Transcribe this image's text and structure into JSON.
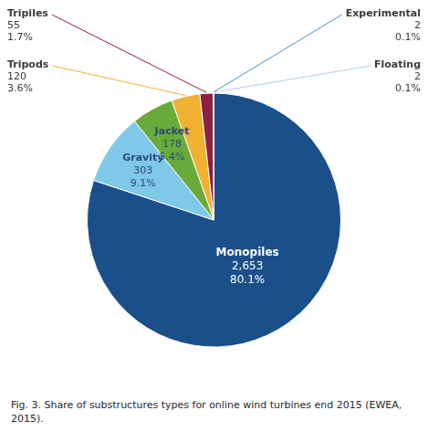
{
  "chart_data": {
    "type": "pie",
    "categories": [
      "Monopiles",
      "Gravity",
      "Jacket",
      "Tripods",
      "Tripiles",
      "Experimental",
      "Floating"
    ],
    "values": [
      2653,
      303,
      178,
      120,
      55,
      2,
      2
    ],
    "value_labels": [
      "2,653",
      "303",
      "178",
      "120",
      "55",
      "2",
      "2"
    ],
    "percents": [
      80.1,
      9.1,
      5.4,
      3.6,
      1.7,
      0.1,
      0.1
    ],
    "percent_labels": [
      "80.1%",
      "9.1%",
      "5.4%",
      "3.6%",
      "1.7%",
      "0.1%",
      "0.1%"
    ],
    "colors": [
      "#1b4f8a",
      "#7ec8e8",
      "#6aaa3a",
      "#f0b030",
      "#8b2040",
      "#4a8fbf",
      "#a8d4e8"
    ],
    "data_labels": true,
    "legend": false,
    "caption": "Fig. 3. Share of substructures types for online wind turbines end 2015 (EWEA, 2015)."
  }
}
